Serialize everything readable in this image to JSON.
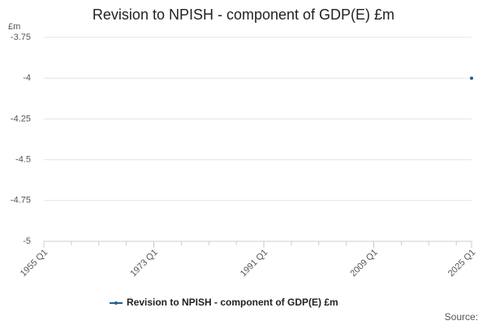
{
  "chart_data": {
    "type": "line",
    "title": "Revision to NPISH - component of GDP(E) £m",
    "y_unit": "£m",
    "source": "Source:",
    "x": [
      "2025 Q1"
    ],
    "series": [
      {
        "name": "Revision to NPISH - component of GDP(E) £m",
        "color": "#206095",
        "values": [
          -4
        ]
      }
    ],
    "xlim": [
      "1955 Q1",
      "2025 Q1"
    ],
    "xticks": [
      "1955 Q1",
      "1973 Q1",
      "1991 Q1",
      "2009 Q1",
      "2025 Q1"
    ],
    "ylim": [
      -5,
      -3.75
    ],
    "yticks": [
      -3.75,
      -4,
      -4.25,
      -4.5,
      -4.75,
      -5
    ],
    "grid": true
  }
}
